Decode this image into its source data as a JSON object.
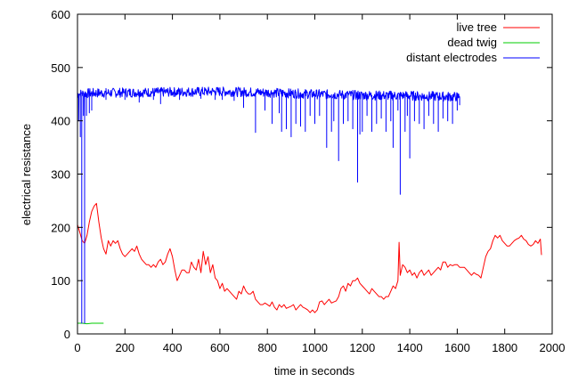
{
  "chart_data": {
    "type": "line",
    "xlabel": "time in seconds",
    "ylabel": "electrical resistance",
    "xlim": [
      0,
      2000
    ],
    "ylim": [
      0,
      600
    ],
    "x_ticks": [
      0,
      200,
      400,
      600,
      800,
      1000,
      1200,
      1400,
      1600,
      1800,
      2000
    ],
    "y_ticks": [
      0,
      100,
      200,
      300,
      400,
      500,
      600
    ],
    "grid": false,
    "legend_position": "top-right",
    "series": [
      {
        "name": "live tree",
        "color": "#ff0000",
        "points": [
          [
            0,
            205
          ],
          [
            10,
            190
          ],
          [
            20,
            175
          ],
          [
            30,
            170
          ],
          [
            40,
            185
          ],
          [
            50,
            210
          ],
          [
            60,
            230
          ],
          [
            70,
            240
          ],
          [
            80,
            245
          ],
          [
            90,
            210
          ],
          [
            100,
            180
          ],
          [
            110,
            160
          ],
          [
            120,
            150
          ],
          [
            130,
            175
          ],
          [
            140,
            165
          ],
          [
            150,
            175
          ],
          [
            160,
            170
          ],
          [
            170,
            175
          ],
          [
            180,
            160
          ],
          [
            190,
            150
          ],
          [
            200,
            145
          ],
          [
            210,
            150
          ],
          [
            220,
            155
          ],
          [
            230,
            160
          ],
          [
            240,
            155
          ],
          [
            250,
            165
          ],
          [
            260,
            150
          ],
          [
            270,
            140
          ],
          [
            280,
            135
          ],
          [
            290,
            130
          ],
          [
            300,
            130
          ],
          [
            310,
            125
          ],
          [
            320,
            130
          ],
          [
            330,
            125
          ],
          [
            340,
            135
          ],
          [
            350,
            140
          ],
          [
            360,
            130
          ],
          [
            370,
            135
          ],
          [
            380,
            150
          ],
          [
            390,
            160
          ],
          [
            400,
            145
          ],
          [
            410,
            120
          ],
          [
            420,
            100
          ],
          [
            430,
            110
          ],
          [
            440,
            120
          ],
          [
            450,
            120
          ],
          [
            460,
            115
          ],
          [
            470,
            115
          ],
          [
            480,
            135
          ],
          [
            490,
            125
          ],
          [
            500,
            120
          ],
          [
            510,
            140
          ],
          [
            520,
            115
          ],
          [
            530,
            155
          ],
          [
            540,
            130
          ],
          [
            550,
            145
          ],
          [
            560,
            115
          ],
          [
            570,
            130
          ],
          [
            580,
            105
          ],
          [
            590,
            100
          ],
          [
            600,
            85
          ],
          [
            610,
            95
          ],
          [
            620,
            80
          ],
          [
            630,
            85
          ],
          [
            640,
            80
          ],
          [
            650,
            75
          ],
          [
            660,
            70
          ],
          [
            670,
            65
          ],
          [
            680,
            80
          ],
          [
            690,
            75
          ],
          [
            700,
            90
          ],
          [
            710,
            80
          ],
          [
            720,
            75
          ],
          [
            730,
            75
          ],
          [
            740,
            80
          ],
          [
            750,
            65
          ],
          [
            760,
            60
          ],
          [
            770,
            55
          ],
          [
            780,
            55
          ],
          [
            790,
            58
          ],
          [
            800,
            55
          ],
          [
            810,
            52
          ],
          [
            820,
            60
          ],
          [
            830,
            50
          ],
          [
            840,
            45
          ],
          [
            850,
            55
          ],
          [
            860,
            50
          ],
          [
            870,
            55
          ],
          [
            880,
            48
          ],
          [
            890,
            50
          ],
          [
            900,
            52
          ],
          [
            910,
            55
          ],
          [
            920,
            45
          ],
          [
            930,
            50
          ],
          [
            940,
            55
          ],
          [
            950,
            50
          ],
          [
            960,
            48
          ],
          [
            970,
            45
          ],
          [
            980,
            40
          ],
          [
            990,
            45
          ],
          [
            1000,
            40
          ],
          [
            1010,
            45
          ],
          [
            1020,
            60
          ],
          [
            1030,
            62
          ],
          [
            1040,
            55
          ],
          [
            1050,
            60
          ],
          [
            1060,
            65
          ],
          [
            1070,
            58
          ],
          [
            1080,
            60
          ],
          [
            1090,
            62
          ],
          [
            1100,
            70
          ],
          [
            1110,
            85
          ],
          [
            1120,
            90
          ],
          [
            1130,
            80
          ],
          [
            1140,
            95
          ],
          [
            1150,
            90
          ],
          [
            1160,
            100
          ],
          [
            1170,
            100
          ],
          [
            1180,
            105
          ],
          [
            1190,
            95
          ],
          [
            1200,
            90
          ],
          [
            1210,
            85
          ],
          [
            1220,
            80
          ],
          [
            1230,
            75
          ],
          [
            1240,
            85
          ],
          [
            1250,
            80
          ],
          [
            1260,
            75
          ],
          [
            1270,
            70
          ],
          [
            1280,
            70
          ],
          [
            1290,
            65
          ],
          [
            1300,
            70
          ],
          [
            1310,
            70
          ],
          [
            1320,
            80
          ],
          [
            1330,
            90
          ],
          [
            1340,
            85
          ],
          [
            1350,
            100
          ],
          [
            1355,
            172
          ],
          [
            1360,
            110
          ],
          [
            1370,
            130
          ],
          [
            1380,
            125
          ],
          [
            1390,
            115
          ],
          [
            1400,
            120
          ],
          [
            1410,
            110
          ],
          [
            1420,
            115
          ],
          [
            1430,
            105
          ],
          [
            1440,
            115
          ],
          [
            1450,
            120
          ],
          [
            1460,
            110
          ],
          [
            1470,
            115
          ],
          [
            1480,
            120
          ],
          [
            1490,
            110
          ],
          [
            1500,
            115
          ],
          [
            1510,
            120
          ],
          [
            1520,
            125
          ],
          [
            1530,
            120
          ],
          [
            1540,
            135
          ],
          [
            1550,
            135
          ],
          [
            1560,
            125
          ],
          [
            1570,
            130
          ],
          [
            1580,
            128
          ],
          [
            1590,
            130
          ],
          [
            1600,
            130
          ],
          [
            1610,
            125
          ],
          [
            1620,
            125
          ],
          [
            1630,
            125
          ],
          [
            1640,
            120
          ],
          [
            1650,
            115
          ],
          [
            1660,
            110
          ],
          [
            1670,
            115
          ],
          [
            1680,
            112
          ],
          [
            1690,
            110
          ],
          [
            1700,
            105
          ],
          [
            1710,
            125
          ],
          [
            1720,
            145
          ],
          [
            1730,
            155
          ],
          [
            1740,
            160
          ],
          [
            1750,
            175
          ],
          [
            1760,
            185
          ],
          [
            1770,
            180
          ],
          [
            1780,
            185
          ],
          [
            1790,
            175
          ],
          [
            1800,
            170
          ],
          [
            1810,
            165
          ],
          [
            1820,
            165
          ],
          [
            1830,
            170
          ],
          [
            1840,
            175
          ],
          [
            1850,
            178
          ],
          [
            1860,
            180
          ],
          [
            1870,
            185
          ],
          [
            1880,
            178
          ],
          [
            1890,
            175
          ],
          [
            1900,
            168
          ],
          [
            1910,
            165
          ],
          [
            1920,
            168
          ],
          [
            1930,
            175
          ],
          [
            1940,
            170
          ],
          [
            1950,
            178
          ],
          [
            1955,
            148
          ]
        ]
      },
      {
        "name": "dead twig",
        "color": "#00cc00",
        "points": [
          [
            0,
            20
          ],
          [
            20,
            20
          ],
          [
            40,
            19
          ],
          [
            60,
            20
          ],
          [
            80,
            20
          ],
          [
            100,
            20
          ],
          [
            110,
            20
          ]
        ]
      },
      {
        "name": "distant electrodes",
        "color": "#0000ff",
        "baseline": [
          [
            0,
            450
          ],
          [
            50,
            452
          ],
          [
            200,
            453
          ],
          [
            400,
            454
          ],
          [
            600,
            455
          ],
          [
            800,
            453
          ],
          [
            1000,
            450
          ],
          [
            1200,
            448
          ],
          [
            1400,
            447
          ],
          [
            1610,
            445
          ]
        ],
        "spikes": [
          [
            5,
            400
          ],
          [
            12,
            370
          ],
          [
            18,
            20
          ],
          [
            25,
            410
          ],
          [
            30,
            20
          ],
          [
            38,
            410
          ],
          [
            50,
            415
          ],
          [
            60,
            420
          ],
          [
            120,
            440
          ],
          [
            200,
            440
          ],
          [
            260,
            435
          ],
          [
            320,
            440
          ],
          [
            350,
            432
          ],
          [
            430,
            440
          ],
          [
            520,
            442
          ],
          [
            580,
            440
          ],
          [
            610,
            440
          ],
          [
            660,
            438
          ],
          [
            700,
            425
          ],
          [
            750,
            378
          ],
          [
            790,
            420
          ],
          [
            820,
            395
          ],
          [
            850,
            415
          ],
          [
            860,
            380
          ],
          [
            880,
            385
          ],
          [
            900,
            370
          ],
          [
            920,
            395
          ],
          [
            940,
            390
          ],
          [
            960,
            380
          ],
          [
            980,
            410
          ],
          [
            1000,
            395
          ],
          [
            1020,
            410
          ],
          [
            1050,
            350
          ],
          [
            1070,
            380
          ],
          [
            1080,
            400
          ],
          [
            1100,
            325
          ],
          [
            1120,
            395
          ],
          [
            1140,
            400
          ],
          [
            1160,
            385
          ],
          [
            1180,
            285
          ],
          [
            1190,
            375
          ],
          [
            1200,
            380
          ],
          [
            1220,
            410
          ],
          [
            1240,
            380
          ],
          [
            1260,
            395
          ],
          [
            1280,
            405
          ],
          [
            1300,
            380
          ],
          [
            1320,
            400
          ],
          [
            1330,
            350
          ],
          [
            1350,
            420
          ],
          [
            1360,
            262
          ],
          [
            1380,
            380
          ],
          [
            1390,
            410
          ],
          [
            1400,
            330
          ],
          [
            1420,
            400
          ],
          [
            1440,
            395
          ],
          [
            1460,
            385
          ],
          [
            1480,
            410
          ],
          [
            1500,
            395
          ],
          [
            1520,
            380
          ],
          [
            1540,
            405
          ],
          [
            1560,
            400
          ],
          [
            1580,
            395
          ],
          [
            1600,
            420
          ],
          [
            1610,
            430
          ]
        ]
      }
    ]
  }
}
